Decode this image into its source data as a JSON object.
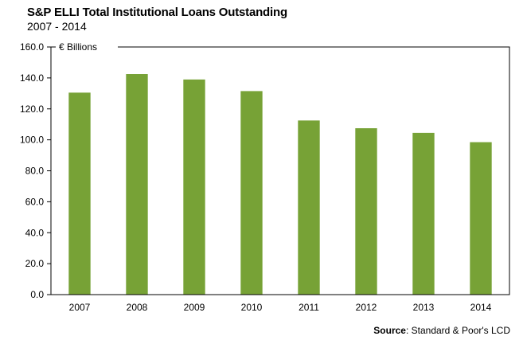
{
  "chart_data": {
    "type": "bar",
    "title": "S&P ELLI Total Institutional Loans Outstanding",
    "subtitle": "2007 - 2014",
    "unit_label": "€ Billions",
    "categories": [
      "2007",
      "2008",
      "2009",
      "2010",
      "2011",
      "2012",
      "2013",
      "2014"
    ],
    "values": [
      130.5,
      142.5,
      139.0,
      131.5,
      112.5,
      107.5,
      104.5,
      98.5
    ],
    "ylim": [
      0,
      160
    ],
    "y_ticks": [
      "0.0",
      "20.0",
      "40.0",
      "60.0",
      "80.0",
      "100.0",
      "120.0",
      "140.0",
      "160.0"
    ],
    "grid": false,
    "bar_color": "#77A236",
    "source_label": "Source",
    "source_text": ": Standard & Poor's LCD"
  }
}
